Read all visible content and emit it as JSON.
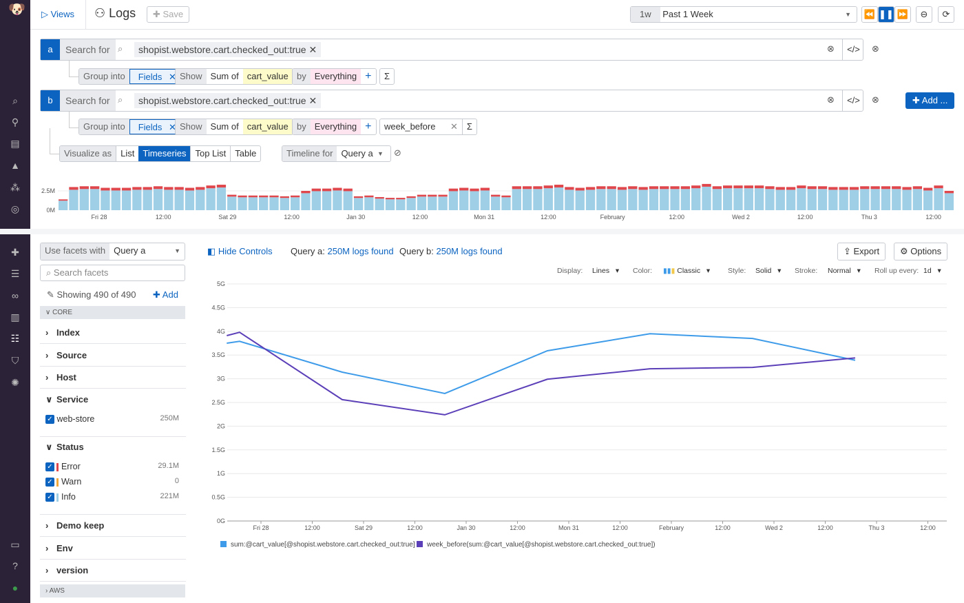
{
  "header": {
    "views": "Views",
    "title": "Logs",
    "save": "Save",
    "time_badge": "1w",
    "time_label": "Past 1 Week"
  },
  "queries": [
    {
      "letter": "a",
      "search_label": "Search for",
      "query": "shopist.webstore.cart.checked_out:true",
      "group_into": "Group into",
      "fields": "Fields",
      "show": "Show",
      "sum_of": "Sum of",
      "measure": "cart_value",
      "by": "by",
      "everything": "Everything"
    },
    {
      "letter": "b",
      "search_label": "Search for",
      "query": "shopist.webstore.cart.checked_out:true",
      "group_into": "Group into",
      "fields": "Fields",
      "show": "Show",
      "sum_of": "Sum of",
      "measure": "cart_value",
      "by": "by",
      "everything": "Everything",
      "function": "week_before"
    }
  ],
  "add_button": "Add ...",
  "visualize": {
    "label": "Visualize as",
    "options": [
      "List",
      "Timeseries",
      "Top List",
      "Table"
    ],
    "selected": "Timeseries",
    "timeline_for": "Timeline for",
    "timeline_query": "Query a"
  },
  "timeline": {
    "y_ticks": [
      "2.5M",
      "0M"
    ],
    "x_ticks": [
      "Fri 28",
      "12:00",
      "Sat 29",
      "12:00",
      "Jan 30",
      "12:00",
      "Mon 31",
      "12:00",
      "February",
      "12:00",
      "Wed 2",
      "12:00",
      "Thu 3",
      "12:00"
    ],
    "info_color": "#9fcfe6",
    "error_color": "#e0474c",
    "values_m": [
      1.4,
      3.0,
      3.1,
      3.1,
      2.9,
      2.9,
      2.9,
      3.0,
      3.0,
      3.1,
      3.0,
      3.0,
      2.9,
      3.0,
      3.2,
      3.3,
      2.0,
      1.9,
      1.9,
      1.9,
      1.9,
      1.8,
      1.9,
      2.5,
      2.8,
      2.8,
      2.9,
      2.8,
      1.8,
      1.9,
      1.7,
      1.6,
      1.6,
      1.8,
      2.0,
      2.0,
      2.0,
      2.8,
      2.9,
      2.8,
      2.9,
      2.0,
      1.9,
      3.1,
      3.1,
      3.1,
      3.2,
      3.3,
      3.0,
      2.9,
      3.0,
      3.1,
      3.1,
      3.0,
      3.1,
      3.0,
      3.1,
      3.1,
      3.1,
      3.1,
      3.2,
      3.4,
      3.1,
      3.2,
      3.2,
      3.2,
      3.2,
      3.1,
      3.0,
      3.0,
      3.2,
      3.1,
      3.1,
      3.0,
      3.0,
      3.0,
      3.1,
      3.1,
      3.1,
      3.1,
      3.0,
      3.1,
      2.9,
      3.2,
      2.5
    ]
  },
  "facets": {
    "use_facets": "Use facets with",
    "query": "Query a",
    "search_placeholder": "Search facets",
    "showing": "Showing 490 of 490",
    "add": "Add",
    "core": "CORE",
    "index": "Index",
    "source": "Source",
    "host": "Host",
    "service": "Service",
    "service_values": [
      {
        "name": "web-store",
        "count": "250M"
      }
    ],
    "status": "Status",
    "status_values": [
      {
        "name": "Error",
        "count": "29.1M",
        "color": "#e0474c"
      },
      {
        "name": "Warn",
        "count": "0",
        "color": "#f2a93b"
      },
      {
        "name": "Info",
        "count": "221M",
        "color": "#9fcfe6"
      }
    ],
    "demo_keep": "Demo keep",
    "env": "Env",
    "version": "version",
    "aws": "AWS"
  },
  "results": {
    "hide_controls": "Hide Controls",
    "qa_label": "Query a:",
    "qa_found": "250M logs found",
    "qb_label": "Query b:",
    "qb_found": "250M logs found",
    "export": "Export",
    "options": "Options"
  },
  "controls": {
    "display_label": "Display:",
    "display": "Lines",
    "color_label": "Color:",
    "color": "Classic",
    "style_label": "Style:",
    "style": "Solid",
    "stroke_label": "Stroke:",
    "stroke": "Normal",
    "rollup_label": "Roll up every:",
    "rollup": "1d"
  },
  "chart_data": {
    "type": "line",
    "ylim": [
      0,
      5
    ],
    "y_unit": "G",
    "y_ticks": [
      "0G",
      "0.5G",
      "1G",
      "1.5G",
      "2G",
      "2.5G",
      "3G",
      "3.5G",
      "4G",
      "4.5G",
      "5G"
    ],
    "x_ticks": [
      "Fri 28",
      "12:00",
      "Sat 29",
      "12:00",
      "Jan 30",
      "12:00",
      "Mon 31",
      "12:00",
      "February",
      "12:00",
      "Wed 2",
      "12:00",
      "Thu 3",
      "12:00"
    ],
    "x": [
      "Jan 27 16:00",
      "Jan 27 19:00",
      "Jan 28 19:00",
      "Jan 29 19:00",
      "Jan 30 19:00",
      "Jan 31 19:00",
      "Feb 1 19:00",
      "Feb 2 19:00"
    ],
    "grid": true,
    "legend": "bottom-left",
    "series": [
      {
        "name": "sum:@cart_value[@shopist.webstore.cart.checked_out:true]",
        "color": "#3d9be9",
        "values": [
          3.75,
          3.79,
          3.14,
          2.69,
          3.59,
          3.95,
          3.85,
          3.39
        ]
      },
      {
        "name": "week_before(sum:@cart_value[@shopist.webstore.cart.checked_out:true])",
        "color": "#5b3fb8",
        "values": [
          3.91,
          3.98,
          2.56,
          2.24,
          2.99,
          3.21,
          3.24,
          3.44
        ]
      }
    ]
  }
}
